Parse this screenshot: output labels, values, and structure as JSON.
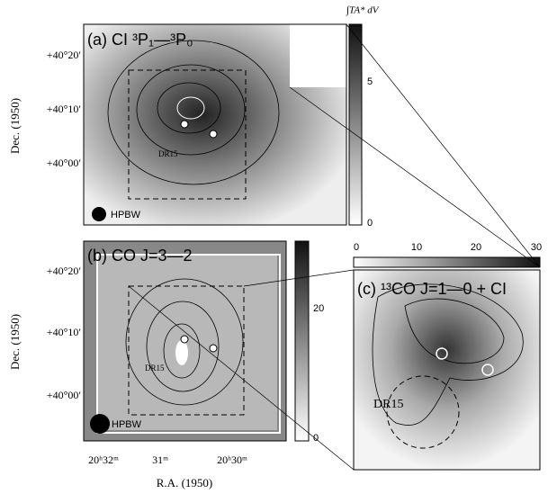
{
  "panel_a": {
    "label": "(a) CI ³P₁—³P₀",
    "colorbar_label": "∫TA* dV",
    "colorbar_ticks": [
      5,
      0
    ],
    "dec_ticks": [
      "+40°20′",
      "+40°10′",
      "+40°00′"
    ],
    "dec_label": "Dec. (1950)",
    "beam": "HPBW",
    "source": "DR15"
  },
  "panel_b": {
    "label": "(b) CO J=3—2",
    "colorbar_ticks": [
      20,
      0
    ],
    "dec_ticks": [
      "+40°20′",
      "+40°10′",
      "+40°00′"
    ],
    "dec_label": "Dec. (1950)",
    "beam": "HPBW",
    "source": "DR15"
  },
  "panel_c": {
    "label": "(c) ¹³CO J=1—0 + CI",
    "colorbar_ticks": [
      0,
      10,
      20,
      30
    ],
    "source": "DR15"
  },
  "ra_axis": {
    "ticks": [
      "20ʰ32ᵐ",
      "31ᵐ",
      "20ʰ30ᵐ"
    ],
    "label": "R.A. (1950)"
  }
}
